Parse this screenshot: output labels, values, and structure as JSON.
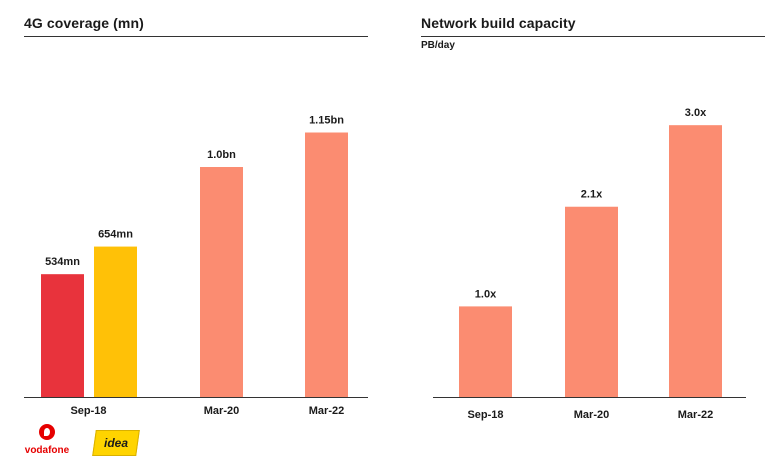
{
  "left_panel": {
    "title": "4G coverage (mn)",
    "logos": {
      "vodafone": "vodafone",
      "idea": "idea"
    }
  },
  "right_panel": {
    "title": "Network build capacity",
    "unit": "PB/day"
  },
  "colors": {
    "vodafone_red": "#e8333c",
    "idea_yellow": "#ffc107",
    "combined_salmon": "#fb8c71",
    "axis": "#333333"
  },
  "chart_data": [
    {
      "type": "bar",
      "title": "4G coverage (mn)",
      "xlabel": "",
      "ylabel": "",
      "ylim": [
        0,
        1300
      ],
      "categories": [
        "Sep-18",
        "Mar-20",
        "Mar-22"
      ],
      "bars": [
        {
          "category": "Sep-18",
          "label": "534mn",
          "value": 534,
          "brand": "vodafone"
        },
        {
          "category": "Sep-18",
          "label": "654mn",
          "value": 654,
          "brand": "idea"
        },
        {
          "category": "Mar-20",
          "label": "1.0bn",
          "value": 1000,
          "brand": "combined"
        },
        {
          "category": "Mar-22",
          "label": "1.15bn",
          "value": 1150,
          "brand": "combined"
        }
      ]
    },
    {
      "type": "bar",
      "title": "Network build capacity",
      "xlabel": "",
      "ylabel": "PB/day",
      "ylim": [
        0,
        3.3
      ],
      "categories": [
        "Sep-18",
        "Mar-20",
        "Mar-22"
      ],
      "bars": [
        {
          "category": "Sep-18",
          "label": "1.0x",
          "value": 1.0
        },
        {
          "category": "Mar-20",
          "label": "2.1x",
          "value": 2.1
        },
        {
          "category": "Mar-22",
          "label": "3.0x",
          "value": 3.0
        }
      ]
    }
  ]
}
